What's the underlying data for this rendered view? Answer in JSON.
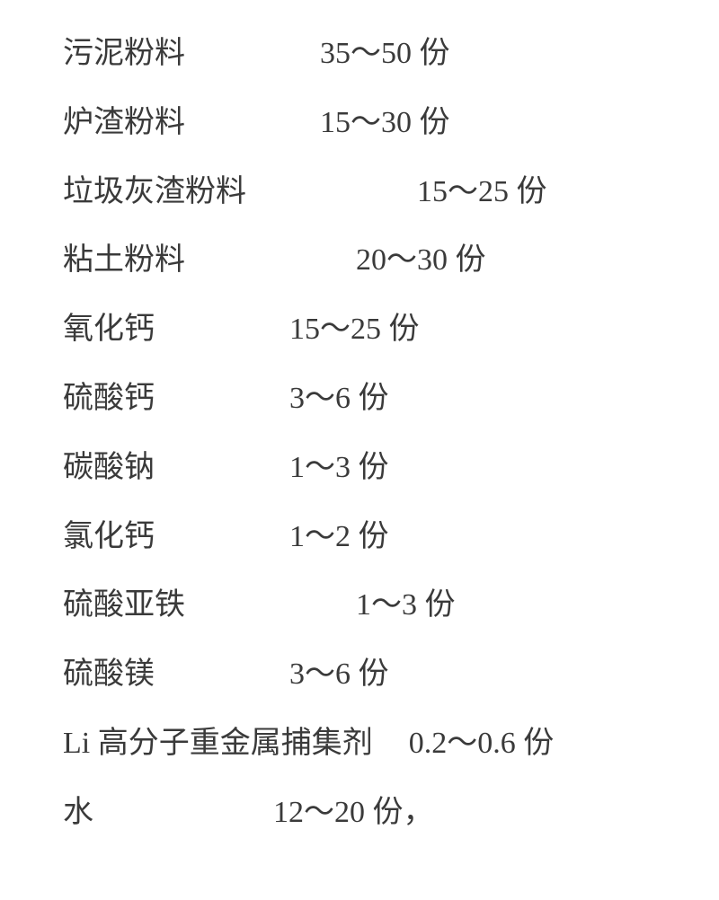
{
  "background_color": "#ffffff",
  "text_color": "#3a3a3a",
  "font_size_pt": 26,
  "font_family": "SimSun",
  "rows": [
    {
      "label": "污泥粉料",
      "value": "35～50 份",
      "gap_class": "gap-med"
    },
    {
      "label": "炉渣粉料",
      "value": "15～30 份",
      "gap_class": "gap-med"
    },
    {
      "label": "垃圾灰渣粉料",
      "value": "15～25 份",
      "gap_class": "gap-wide",
      "offset": true
    },
    {
      "label": "粘土粉料",
      "value": "20～30 份",
      "gap_class": "gap-wide",
      "offset": true
    },
    {
      "label": "氧化钙",
      "value": "15～25 份",
      "gap_class": "gap-med"
    },
    {
      "label": "硫酸钙",
      "value": "3～6 份",
      "gap_class": "gap-med"
    },
    {
      "label": "碳酸钠",
      "value": "1～3 份",
      "gap_class": "gap-med"
    },
    {
      "label": "氯化钙",
      "value": "1～2 份",
      "gap_class": "gap-med"
    },
    {
      "label": "硫酸亚铁",
      "value": "1～3 份",
      "gap_class": "gap-wide",
      "offset": true
    },
    {
      "label": "硫酸镁",
      "value": "3～6 份",
      "gap_class": "gap-med"
    },
    {
      "label": "Li 高分子重金属捕集剂",
      "value": "0.2～0.6 份",
      "gap_class": "gap-small"
    },
    {
      "label": "水",
      "value": "12～20 份，",
      "gap_class": "gap-last"
    }
  ]
}
